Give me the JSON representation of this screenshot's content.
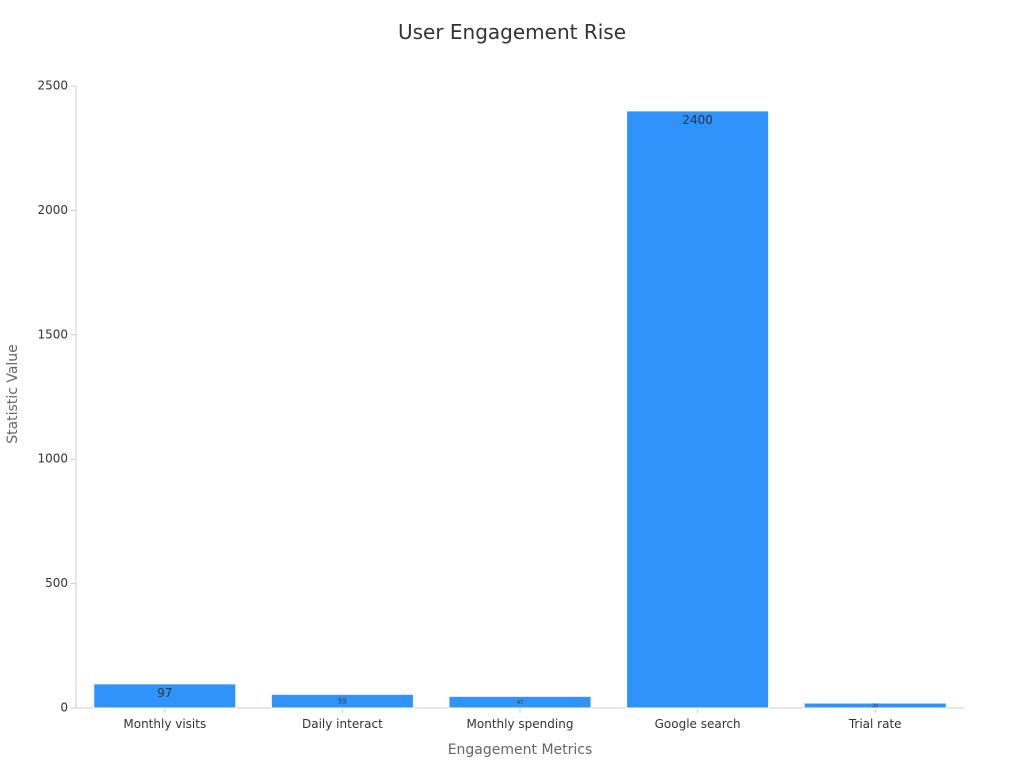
{
  "chart_data": {
    "type": "bar",
    "title": "User Engagement Rise",
    "xlabel": "Engagement Metrics",
    "ylabel": "Statistic Value",
    "categories": [
      "Monthly visits",
      "Daily interact",
      "Monthly spending",
      "Google search",
      "Trial rate"
    ],
    "values": [
      97,
      55,
      47,
      2400,
      20
    ],
    "value_labels": [
      "97",
      "55",
      "47",
      "2400",
      "20"
    ],
    "ylim": [
      0,
      2500
    ],
    "yticks": [
      0,
      500,
      1000,
      1500,
      2000,
      2500
    ],
    "ytick_labels": [
      "0",
      "500",
      "1000",
      "1500",
      "2000",
      "2500"
    ],
    "grid": false,
    "legend": "none",
    "colors": {
      "bar": "#2e93fa",
      "bar_stroke": "#ffffff",
      "axis": "#cccccc",
      "tick_text": "#333333",
      "label_text": "#333333"
    }
  }
}
